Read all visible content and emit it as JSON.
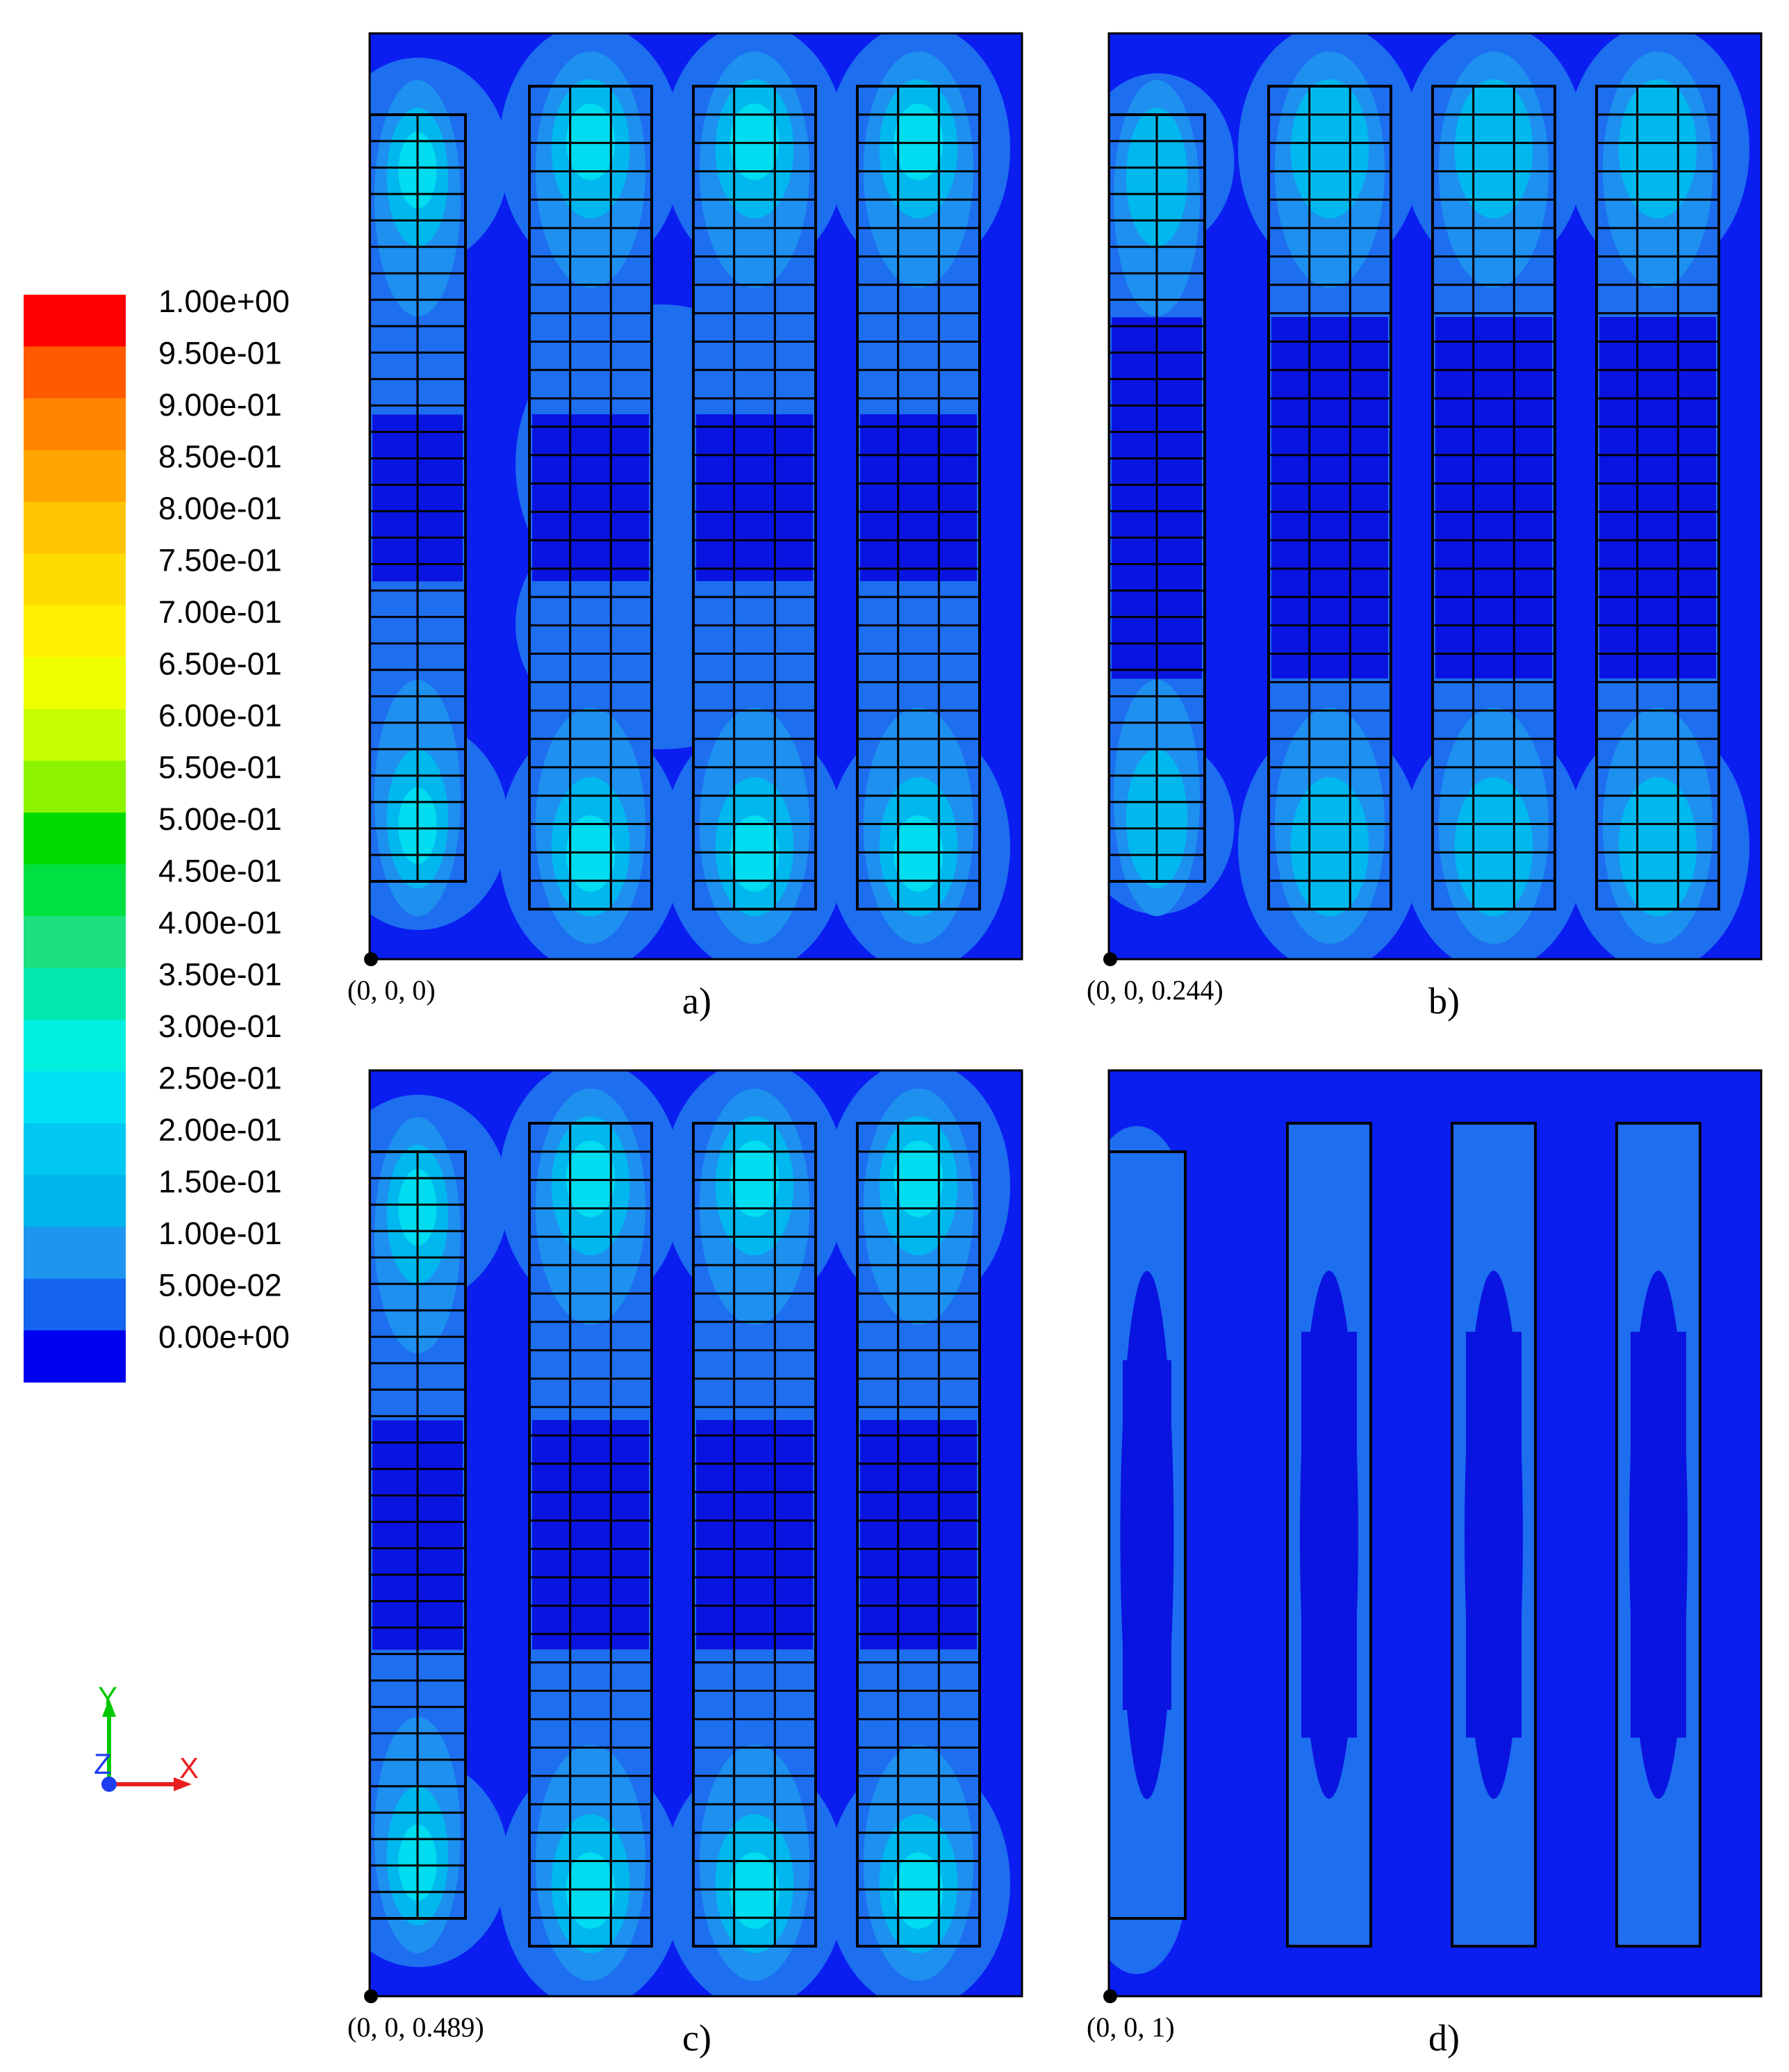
{
  "legend": {
    "labels": [
      "1.00e+00",
      "9.50e-01",
      "9.00e-01",
      "8.50e-01",
      "8.00e-01",
      "7.50e-01",
      "7.00e-01",
      "6.50e-01",
      "6.00e-01",
      "5.50e-01",
      "5.00e-01",
      "4.50e-01",
      "4.00e-01",
      "3.50e-01",
      "3.00e-01",
      "2.50e-01",
      "2.00e-01",
      "1.50e-01",
      "1.00e-01",
      "5.00e-02",
      "0.00e+00"
    ],
    "colors": [
      "#ff0000",
      "#ff5a00",
      "#ff8400",
      "#ffa400",
      "#ffc400",
      "#ffdc00",
      "#fff000",
      "#f0ff00",
      "#c8ff00",
      "#8cf200",
      "#00dc00",
      "#00e040",
      "#1ee080",
      "#00e8b0",
      "#00f0e0",
      "#00e0f4",
      "#00c8f0",
      "#00b4ec",
      "#1e96f0",
      "#1464f0",
      "#0000f0"
    ]
  },
  "colors": {
    "background": "#0a1ef0",
    "stack": "#1e6ef0",
    "light": "#1e90f0",
    "lighter": "#00b8ee",
    "bright": "#00dcf0",
    "brightest": "#00ecd8",
    "dark": "#0a14e0",
    "grid": "#000000"
  },
  "axes_triad": {
    "y": "Y",
    "z": "Z",
    "x": "X"
  },
  "panels": [
    {
      "id": "a",
      "caption": "a)",
      "origin": "(0, 0, 0)",
      "gridded": true
    },
    {
      "id": "b",
      "caption": "b)",
      "origin": "(0, 0, 0.244)",
      "gridded": true
    },
    {
      "id": "c",
      "caption": "c)",
      "origin": "(0, 0, 0.489)",
      "gridded": true
    },
    {
      "id": "d",
      "caption": "d)",
      "origin": "(0, 0, 1)",
      "gridded": false
    }
  ]
}
